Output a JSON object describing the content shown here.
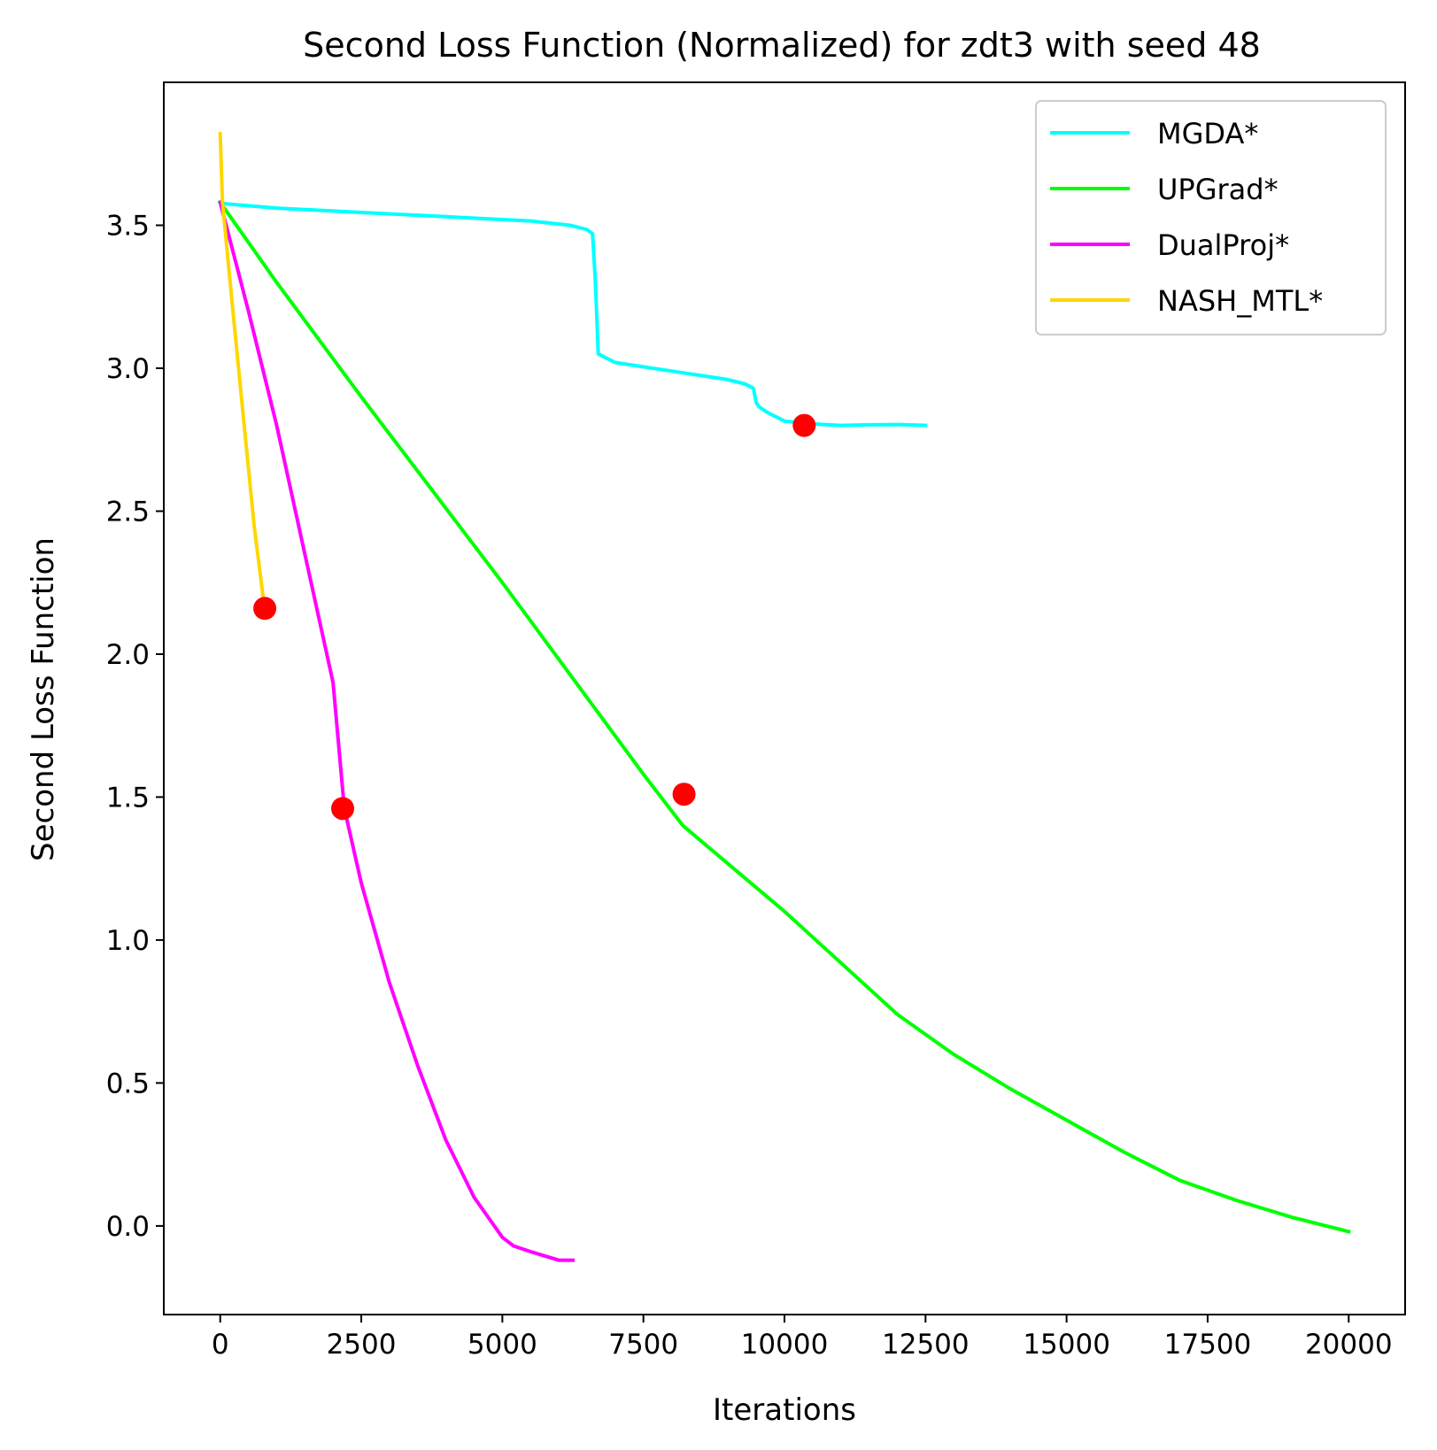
{
  "chart_data": {
    "type": "line",
    "title": "Second Loss Function (Normalized) for zdt3 with seed 48",
    "xlabel": "Iterations",
    "ylabel": "Second Loss Function",
    "xlim": [
      -1000,
      21000
    ],
    "ylim": [
      -0.31,
      4.0
    ],
    "xticks": [
      0,
      2500,
      5000,
      7500,
      10000,
      12500,
      15000,
      17500,
      20000
    ],
    "xtick_labels": [
      "0",
      "2500",
      "5000",
      "7500",
      "10000",
      "12500",
      "15000",
      "17500",
      "20000"
    ],
    "yticks": [
      0.0,
      0.5,
      1.0,
      1.5,
      2.0,
      2.5,
      3.0,
      3.5
    ],
    "ytick_labels": [
      "0.0",
      "0.5",
      "1.0",
      "1.5",
      "2.0",
      "2.5",
      "3.0",
      "3.5"
    ],
    "grid": false,
    "legend_position": "top-right",
    "series": [
      {
        "name": "MGDA*",
        "color": "#00ffff",
        "x": [
          0,
          100,
          1000,
          2500,
          4000,
          5500,
          6200,
          6500,
          6600,
          6650,
          6700,
          7000,
          7500,
          8000,
          8500,
          9000,
          9300,
          9450,
          9500,
          9550,
          9700,
          10000,
          10500,
          11000,
          11500,
          12000,
          12500
        ],
        "y": [
          3.58,
          3.575,
          3.56,
          3.545,
          3.53,
          3.515,
          3.5,
          3.485,
          3.47,
          3.3,
          3.05,
          3.02,
          3.005,
          2.99,
          2.975,
          2.96,
          2.945,
          2.93,
          2.88,
          2.865,
          2.845,
          2.815,
          2.805,
          2.8,
          2.802,
          2.803,
          2.8
        ]
      },
      {
        "name": "UPGrad*",
        "color": "#00ff00",
        "x": [
          0,
          1000,
          2500,
          5000,
          7500,
          8200,
          10000,
          11000,
          12000,
          13000,
          14000,
          15000,
          16000,
          17000,
          18000,
          19000,
          20000
        ],
        "y": [
          3.58,
          3.3,
          2.9,
          2.25,
          1.58,
          1.4,
          1.1,
          0.92,
          0.74,
          0.6,
          0.48,
          0.37,
          0.26,
          0.16,
          0.09,
          0.03,
          -0.02
        ]
      },
      {
        "name": "DualProj*",
        "color": "#ff00ff",
        "x": [
          0,
          500,
          1000,
          1500,
          2000,
          2200,
          2500,
          3000,
          3500,
          4000,
          4500,
          5000,
          5200,
          5500,
          6000,
          6250
        ],
        "y": [
          3.58,
          3.2,
          2.8,
          2.35,
          1.9,
          1.46,
          1.2,
          0.85,
          0.56,
          0.3,
          0.1,
          -0.04,
          -0.07,
          -0.09,
          -0.12,
          -0.12
        ]
      },
      {
        "name": "NASH_MTL*",
        "color": "#ffd700",
        "x": [
          0,
          20,
          40,
          200,
          400,
          600,
          780
        ],
        "y": [
          3.82,
          3.7,
          3.58,
          3.25,
          2.85,
          2.45,
          2.17
        ]
      }
    ],
    "markers": {
      "color": "#ff0000",
      "points": [
        {
          "x": 10350,
          "y": 2.8
        },
        {
          "x": 8220,
          "y": 1.51
        },
        {
          "x": 2170,
          "y": 1.46
        },
        {
          "x": 790,
          "y": 2.16
        }
      ]
    }
  }
}
